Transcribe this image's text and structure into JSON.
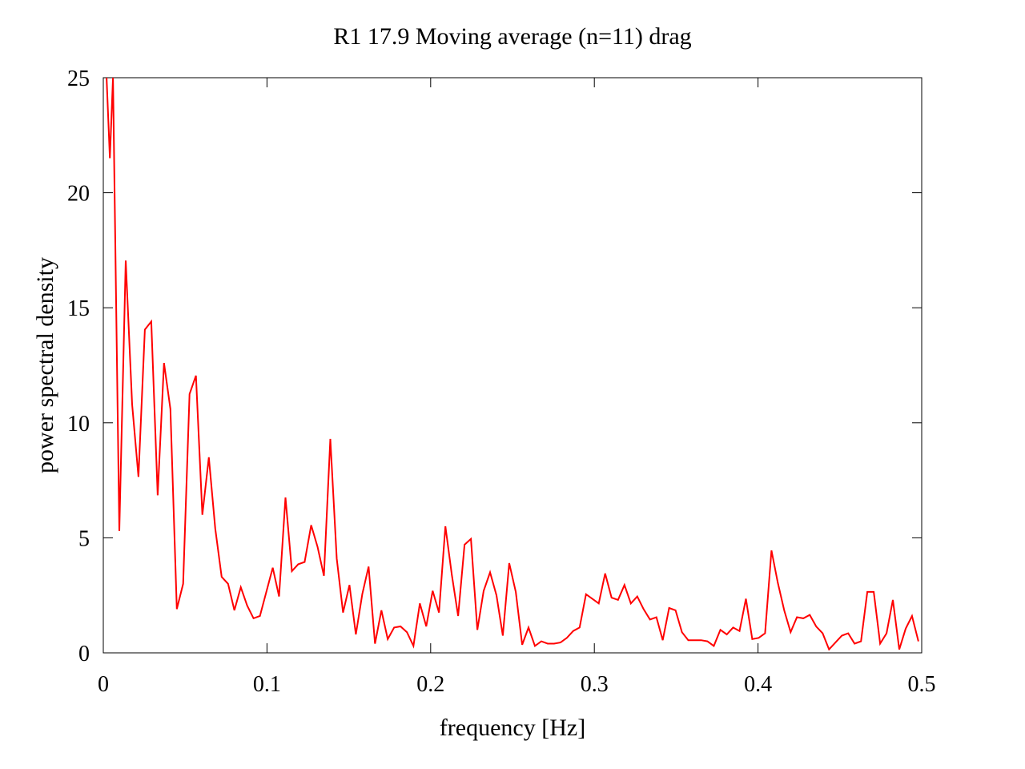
{
  "chart_data": {
    "type": "line",
    "title": "R1 17.9  Moving average (n=11) drag",
    "xlabel": "frequency [Hz]",
    "ylabel": "power spectral density",
    "xlim": [
      0,
      0.5
    ],
    "ylim": [
      0,
      25
    ],
    "xticks": [
      0,
      0.1,
      0.2,
      0.3,
      0.4,
      0.5
    ],
    "xtick_labels": [
      "0",
      "0.1",
      "0.2",
      "0.3",
      "0.4",
      "0.5"
    ],
    "yticks": [
      0,
      5,
      10,
      15,
      20,
      25
    ],
    "ytick_labels": [
      "0",
      "5",
      "10",
      "15",
      "20",
      "25"
    ],
    "grid": false,
    "legend": "none",
    "series": [
      {
        "color": "#ff0000",
        "x": [
          0.002,
          0.004,
          0.0059,
          0.0098,
          0.0137,
          0.0176,
          0.0215,
          0.0254,
          0.0293,
          0.0332,
          0.0371,
          0.041,
          0.0449,
          0.0488,
          0.0527,
          0.0566,
          0.0605,
          0.0645,
          0.0684,
          0.0723,
          0.0762,
          0.0801,
          0.084,
          0.0879,
          0.0918,
          0.0957,
          0.1035,
          0.1074,
          0.1113,
          0.1152,
          0.1191,
          0.123,
          0.127,
          0.1309,
          0.1348,
          0.1387,
          0.1426,
          0.1465,
          0.1504,
          0.1543,
          0.1582,
          0.1621,
          0.166,
          0.1699,
          0.1738,
          0.1777,
          0.1816,
          0.1855,
          0.1895,
          0.1934,
          0.1973,
          0.2012,
          0.2051,
          0.209,
          0.2129,
          0.2168,
          0.2207,
          0.2246,
          0.2285,
          0.2324,
          0.2363,
          0.2402,
          0.2441,
          0.248,
          0.252,
          0.2559,
          0.2598,
          0.2637,
          0.2676,
          0.2715,
          0.2754,
          0.2793,
          0.2832,
          0.2871,
          0.291,
          0.2949,
          0.3027,
          0.3066,
          0.3105,
          0.3145,
          0.3184,
          0.3223,
          0.3262,
          0.3301,
          0.334,
          0.3379,
          0.3418,
          0.3457,
          0.3496,
          0.3535,
          0.3574,
          0.3613,
          0.3652,
          0.3691,
          0.373,
          0.377,
          0.3809,
          0.3848,
          0.3887,
          0.3926,
          0.3965,
          0.4004,
          0.4043,
          0.4082,
          0.4121,
          0.416,
          0.4199,
          0.4238,
          0.4277,
          0.4316,
          0.4355,
          0.4395,
          0.4434,
          0.4473,
          0.4512,
          0.4551,
          0.459,
          0.4629,
          0.4668,
          0.4707,
          0.4746,
          0.4785,
          0.4824,
          0.4863,
          0.4902,
          0.4941,
          0.498
        ],
        "y": [
          25,
          21.5,
          25,
          5.3,
          17.05,
          10.8,
          7.65,
          14.05,
          14.4,
          6.85,
          12.6,
          10.6,
          1.9,
          3.0,
          11.25,
          12.05,
          6.0,
          8.5,
          5.4,
          3.3,
          3.0,
          1.85,
          2.85,
          2.05,
          1.5,
          1.6,
          3.7,
          2.45,
          6.75,
          3.55,
          3.85,
          3.95,
          5.55,
          4.6,
          3.35,
          9.3,
          4.1,
          1.75,
          2.95,
          0.8,
          2.55,
          3.75,
          0.4,
          1.85,
          0.6,
          1.1,
          1.15,
          0.9,
          0.3,
          2.15,
          1.15,
          2.7,
          1.75,
          5.5,
          3.4,
          1.6,
          4.7,
          4.95,
          1.0,
          2.7,
          3.5,
          2.5,
          0.75,
          3.9,
          2.65,
          0.35,
          1.1,
          0.3,
          0.5,
          0.4,
          0.4,
          0.45,
          0.65,
          0.95,
          1.1,
          2.55,
          2.15,
          3.45,
          2.4,
          2.3,
          2.95,
          2.15,
          2.45,
          1.9,
          1.45,
          1.55,
          0.55,
          1.95,
          1.85,
          0.9,
          0.55,
          0.55,
          0.55,
          0.5,
          0.3,
          1.0,
          0.8,
          1.1,
          0.95,
          2.35,
          0.6,
          0.65,
          0.85,
          4.45,
          3.05,
          1.85,
          0.9,
          1.55,
          1.5,
          1.65,
          1.15,
          0.85,
          0.15,
          0.45,
          0.75,
          0.85,
          0.4,
          0.5,
          2.65,
          2.65,
          0.4,
          0.85,
          2.3,
          0.15,
          1.05,
          1.6,
          0.5
        ]
      }
    ]
  }
}
